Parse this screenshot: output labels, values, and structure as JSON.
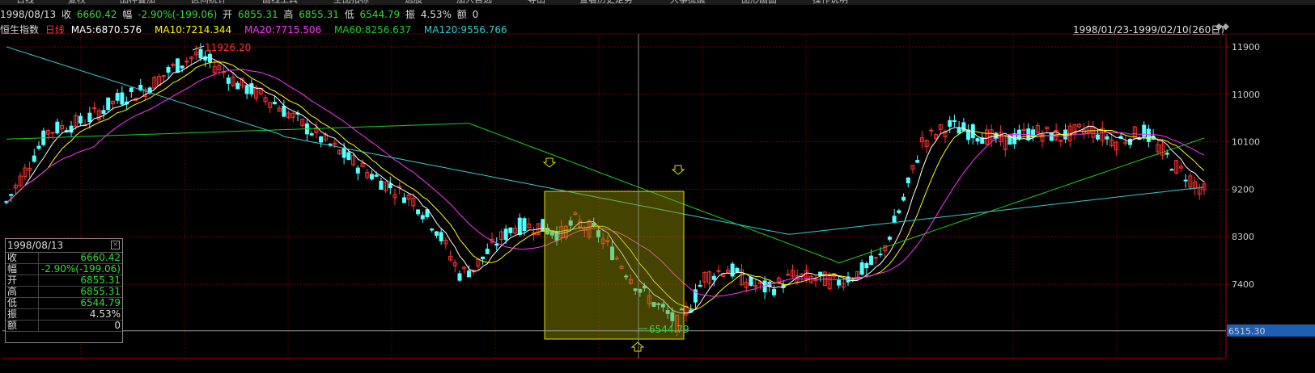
{
  "toolbar": {
    "items": [
      "日线",
      "复权",
      "品种叠加",
      "区间统计",
      "画线工具",
      "主图指标",
      "选股",
      "加入自选",
      "导出",
      "查看历史走势",
      "大事提醒",
      "图形画面",
      "操作说明"
    ]
  },
  "info": {
    "date": "1998/08/13",
    "close_label": "收",
    "close": "6660.42",
    "change_label": "幅",
    "change": "-2.90%(-199.06)",
    "open_label": "开",
    "open": "6855.31",
    "high_label": "高",
    "high": "6855.31",
    "low_label": "低",
    "low": "6544.79",
    "amp_label": "振",
    "amp": "4.53%",
    "vol_label": "额",
    "vol": "0"
  },
  "ma": {
    "name": "恒生指数",
    "period": "日线",
    "ma5": "MA5:6870.576",
    "ma10": "MA10:7214.344",
    "ma20": "MA20:7715.506",
    "ma60": "MA60:8256.637",
    "ma120": "MA120:9556.766",
    "range": "1998/01/23-1999/02/10(260日)"
  },
  "colors": {
    "up": "#ff3232",
    "down": "#54ffff",
    "ma5": "#ffffff",
    "ma10": "#ffff00",
    "ma20": "#ff33ff",
    "ma60": "#22cc22",
    "ma120": "#33cccc",
    "green_text": "#33dd33"
  },
  "panel": {
    "date": "1998/08/13",
    "rows": [
      {
        "k": "收",
        "v": "6660.42",
        "color": "#33dd33"
      },
      {
        "k": "幅",
        "v": "-2.90%(-199.06)",
        "color": "#33dd33"
      },
      {
        "k": "开",
        "v": "6855.31",
        "color": "#33dd33"
      },
      {
        "k": "高",
        "v": "6855.31",
        "color": "#33dd33"
      },
      {
        "k": "低",
        "v": "6544.79",
        "color": "#33dd33"
      },
      {
        "k": "振",
        "v": "4.53%",
        "color": "#dddddd"
      },
      {
        "k": "额",
        "v": "0",
        "color": "#dddddd"
      }
    ]
  },
  "chart_data": {
    "type": "candlestick",
    "y_ticks": [
      11900,
      11000,
      10100,
      9200,
      8300,
      7400
    ],
    "ylim": [
      6300,
      12100
    ],
    "current_price": "6515.30",
    "high_label": "11926.20",
    "low_label": "6544.79",
    "highlight_range": [
      "1998/07/17",
      "1998/08/21"
    ],
    "candles": [],
    "ma5": [],
    "ma10": [],
    "ma20": [],
    "ma60": [],
    "ma120": []
  }
}
